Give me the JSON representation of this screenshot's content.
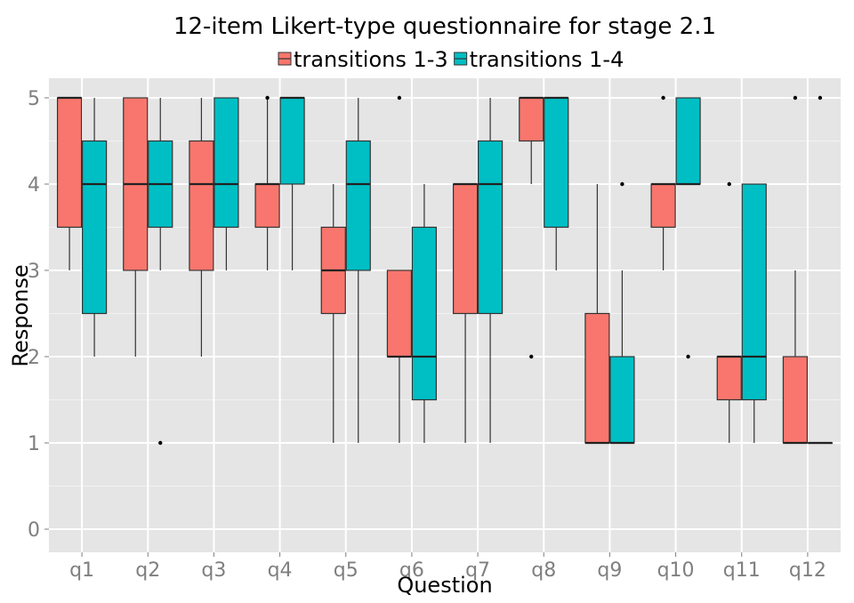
{
  "chart_data": {
    "type": "boxplot",
    "title": "12-item Likert-type questionnaire for stage 2.1",
    "xlabel": "Question",
    "ylabel": "Response",
    "ylim": [
      -0.25,
      5.25
    ],
    "yticks": [
      0,
      1,
      2,
      3,
      4,
      5
    ],
    "grid": true,
    "legend_position": "top",
    "categories": [
      "q1",
      "q2",
      "q3",
      "q4",
      "q5",
      "q6",
      "q7",
      "q8",
      "q9",
      "q10",
      "q11",
      "q12"
    ],
    "series": [
      {
        "name": "transitions 1-3",
        "color": "#F8766D",
        "boxes": [
          {
            "lower_whisker": 3,
            "q1": 3.5,
            "median": 5,
            "q3": 5,
            "upper_whisker": 5,
            "outliers": []
          },
          {
            "lower_whisker": 2,
            "q1": 3,
            "median": 4,
            "q3": 5,
            "upper_whisker": 5,
            "outliers": []
          },
          {
            "lower_whisker": 2,
            "q1": 3,
            "median": 4,
            "q3": 4.5,
            "upper_whisker": 5,
            "outliers": []
          },
          {
            "lower_whisker": 3,
            "q1": 3.5,
            "median": 4,
            "q3": 4,
            "upper_whisker": 5,
            "outliers": [
              5
            ]
          },
          {
            "lower_whisker": 1,
            "q1": 2.5,
            "median": 3,
            "q3": 3.5,
            "upper_whisker": 4,
            "outliers": []
          },
          {
            "lower_whisker": 1,
            "q1": 2,
            "median": 2,
            "q3": 3,
            "upper_whisker": 3,
            "outliers": [
              5
            ]
          },
          {
            "lower_whisker": 1,
            "q1": 2.5,
            "median": 4,
            "q3": 4,
            "upper_whisker": 4,
            "outliers": []
          },
          {
            "lower_whisker": 4,
            "q1": 4.5,
            "median": 5,
            "q3": 5,
            "upper_whisker": 5,
            "outliers": [
              2
            ]
          },
          {
            "lower_whisker": 1,
            "q1": 1,
            "median": 1,
            "q3": 2.5,
            "upper_whisker": 4,
            "outliers": []
          },
          {
            "lower_whisker": 3,
            "q1": 3.5,
            "median": 4,
            "q3": 4,
            "upper_whisker": 4,
            "outliers": [
              5
            ]
          },
          {
            "lower_whisker": 1,
            "q1": 1.5,
            "median": 2,
            "q3": 2,
            "upper_whisker": 2,
            "outliers": [
              4
            ]
          },
          {
            "lower_whisker": 1,
            "q1": 1,
            "median": 1,
            "q3": 2,
            "upper_whisker": 3,
            "outliers": [
              5
            ]
          }
        ]
      },
      {
        "name": "transitions 1-4",
        "color": "#00BFC4",
        "boxes": [
          {
            "lower_whisker": 2,
            "q1": 2.5,
            "median": 4,
            "q3": 4.5,
            "upper_whisker": 5,
            "outliers": []
          },
          {
            "lower_whisker": 3,
            "q1": 3.5,
            "median": 4,
            "q3": 4.5,
            "upper_whisker": 5,
            "outliers": [
              1
            ]
          },
          {
            "lower_whisker": 3,
            "q1": 3.5,
            "median": 4,
            "q3": 5,
            "upper_whisker": 5,
            "outliers": []
          },
          {
            "lower_whisker": 3,
            "q1": 4,
            "median": 5,
            "q3": 5,
            "upper_whisker": 5,
            "outliers": []
          },
          {
            "lower_whisker": 1,
            "q1": 3,
            "median": 4,
            "q3": 4.5,
            "upper_whisker": 5,
            "outliers": []
          },
          {
            "lower_whisker": 1,
            "q1": 1.5,
            "median": 2,
            "q3": 3.5,
            "upper_whisker": 4,
            "outliers": []
          },
          {
            "lower_whisker": 1,
            "q1": 2.5,
            "median": 4,
            "q3": 4.5,
            "upper_whisker": 5,
            "outliers": []
          },
          {
            "lower_whisker": 3,
            "q1": 3.5,
            "median": 5,
            "q3": 5,
            "upper_whisker": 5,
            "outliers": []
          },
          {
            "lower_whisker": 1,
            "q1": 1,
            "median": 1,
            "q3": 2,
            "upper_whisker": 3,
            "outliers": [
              4
            ]
          },
          {
            "lower_whisker": 4,
            "q1": 4,
            "median": 4,
            "q3": 5,
            "upper_whisker": 5,
            "outliers": [
              2
            ]
          },
          {
            "lower_whisker": 1,
            "q1": 1.5,
            "median": 2,
            "q3": 4,
            "upper_whisker": 4,
            "outliers": []
          },
          {
            "lower_whisker": 1,
            "q1": 1,
            "median": 1,
            "q3": 1,
            "upper_whisker": 1,
            "outliers": [
              5
            ]
          }
        ]
      }
    ]
  }
}
